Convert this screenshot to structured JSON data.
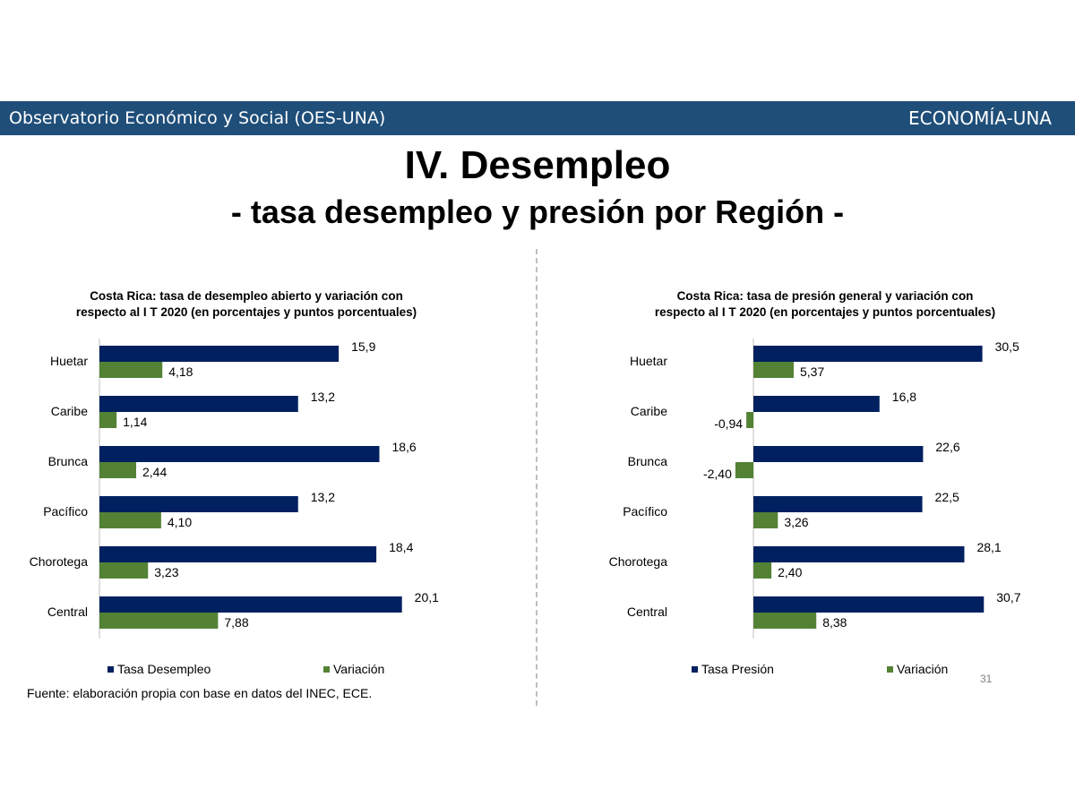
{
  "header": {
    "left": "Observatorio Económico y Social  (OES-UNA)",
    "right": "ECONOMÍA-UNA"
  },
  "title": "IV. Desempleo",
  "subtitle": "- tasa desempleo y presión por Región -",
  "colors": {
    "banner": "#1f4e79",
    "series1": "#002060",
    "series2": "#548235"
  },
  "chart_data": [
    {
      "type": "bar",
      "orientation": "horizontal",
      "title_lines": [
        "Costa Rica: tasa de desempleo abierto y variación con",
        "respecto al I T 2020 (en porcentajes y puntos porcentuales)"
      ],
      "categories": [
        "Huetar",
        "Caribe",
        "Brunca",
        "Pacífico",
        "Chorotega",
        "Central"
      ],
      "series": [
        {
          "name": "Tasa Desempleo",
          "values": [
            15.9,
            13.2,
            18.6,
            13.2,
            18.4,
            20.1
          ],
          "labels": [
            "15,9",
            "13,2",
            "18,6",
            "13,2",
            "18,4",
            "20,1"
          ]
        },
        {
          "name": "Variación",
          "values": [
            4.18,
            1.14,
            2.44,
            4.1,
            3.23,
            7.88
          ],
          "labels": [
            "4,18",
            "1,14",
            "2,44",
            "4,10",
            "3,23",
            "7,88"
          ]
        }
      ],
      "xlim": [
        0,
        23
      ],
      "grid": false,
      "legend": "bottom"
    },
    {
      "type": "bar",
      "orientation": "horizontal",
      "title_lines": [
        "Costa Rica: tasa de presión general y variación con",
        "respecto al I T 2020 (en porcentajes y puntos porcentuales)"
      ],
      "categories": [
        "Huetar",
        "Caribe",
        "Brunca",
        "Pacífico",
        "Chorotega",
        "Central"
      ],
      "series": [
        {
          "name": "Tasa Presión",
          "values": [
            30.5,
            16.8,
            22.6,
            22.5,
            28.1,
            30.7
          ],
          "labels": [
            "30,5",
            "16,8",
            "22,6",
            "22,5",
            "28,1",
            "30,7"
          ]
        },
        {
          "name": "Variación",
          "values": [
            5.37,
            -0.94,
            -2.4,
            3.26,
            2.4,
            8.38
          ],
          "labels": [
            "5,37",
            "-0,94",
            "-2,40",
            "3,26",
            "2,40",
            "8,38"
          ]
        }
      ],
      "xlim": [
        -2.5,
        34
      ],
      "grid": false,
      "legend": "bottom"
    }
  ],
  "source": "Fuente: elaboración propia con base en datos del INEC, ECE.",
  "page_number": "31"
}
